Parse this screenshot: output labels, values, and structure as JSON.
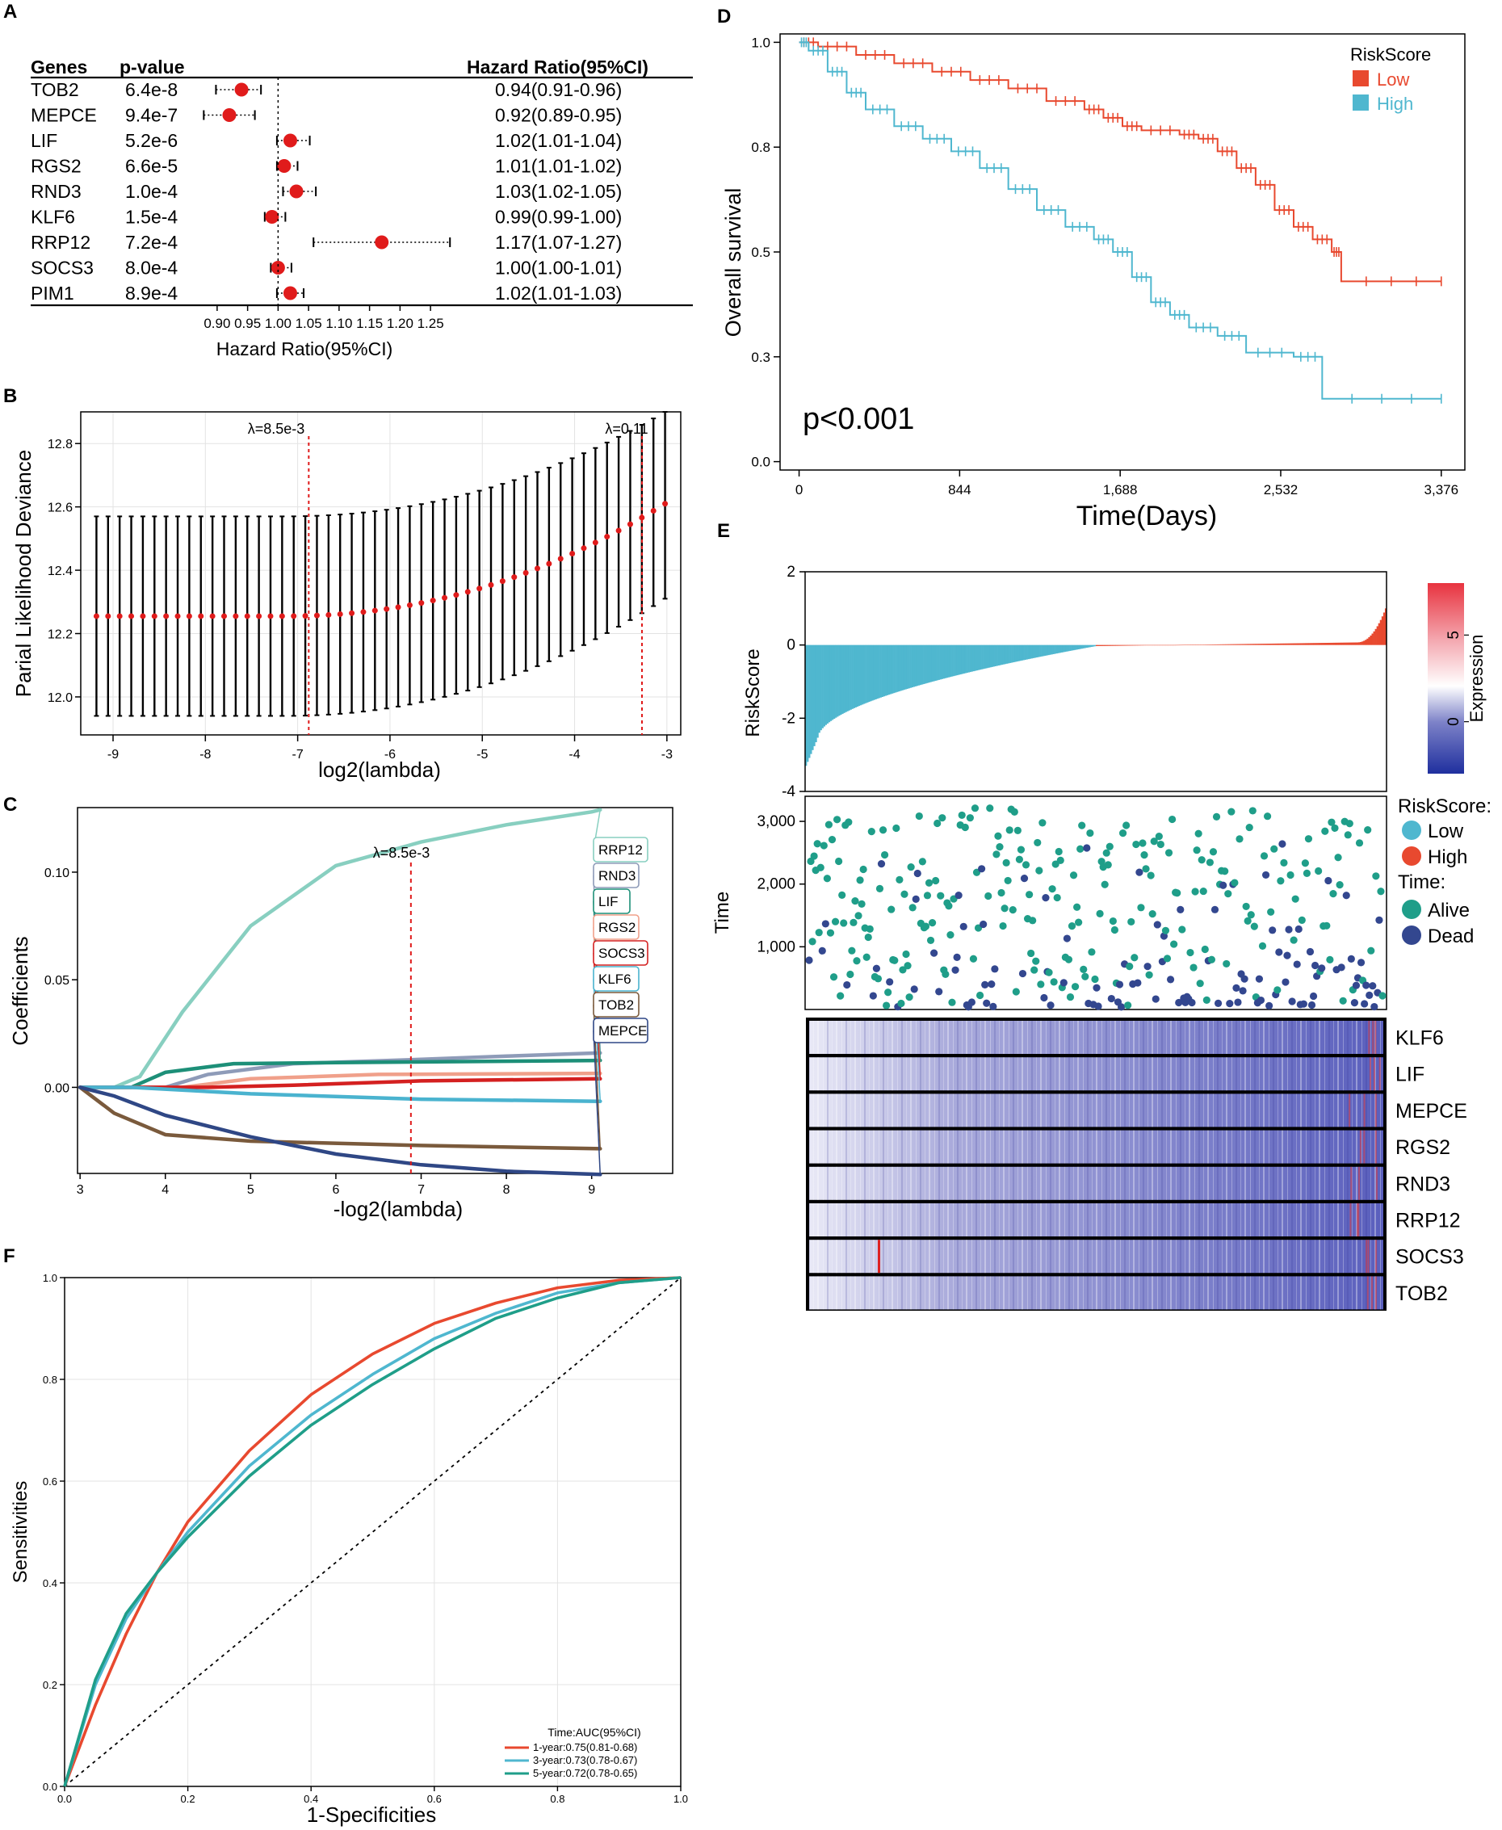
{
  "panels": {
    "A": {
      "letter": "A",
      "hdr_genes": "Genes",
      "hdr_p": "p-value",
      "hdr_hr": "Hazard Ratio(95%CI)",
      "xlabel": "Hazard Ratio(95%CI)",
      "ticks": [
        "0.90",
        "0.95",
        "1.00",
        "1.05",
        "1.10",
        "1.15",
        "1.20",
        "1.25"
      ]
    },
    "B": {
      "letter": "B",
      "ylabel": "Parial Likelihood Deviance",
      "xlabel": "log2(lambda)",
      "lam1": "λ=8.5e-3",
      "lam2": "λ=0.11",
      "xticks": [
        "-9",
        "-8",
        "-7",
        "-6",
        "-5",
        "-4",
        "-3"
      ],
      "yticks": [
        "12.0",
        "12.2",
        "12.4",
        "12.6",
        "12.8"
      ]
    },
    "C": {
      "letter": "C",
      "ylabel": "Coefficients",
      "xlabel": "-log2(lambda)",
      "lam": "λ=8.5e-3",
      "xticks": [
        "3",
        "4",
        "5",
        "6",
        "7",
        "8",
        "9"
      ],
      "yticks": [
        "0.00",
        "0.05",
        "0.10"
      ]
    },
    "D": {
      "letter": "D",
      "ylabel": "Overall survival",
      "xlabel": "Time(Days)",
      "pval": "p<0.001",
      "legend_title": "RiskScore",
      "legend_low": "Low",
      "legend_high": "High",
      "xticks": [
        "0",
        "844",
        "1,688",
        "2,532",
        "3,376"
      ],
      "yticks": [
        "0.0",
        "0.3",
        "0.5",
        "0.8",
        "1.0"
      ]
    },
    "E": {
      "letter": "E",
      "ylabel_top": "RiskScore",
      "ylabel_mid": "Time",
      "colorbar_label": "Expression",
      "cb_ticks": [
        "5",
        "0"
      ],
      "top_yticks": [
        "2",
        "0",
        "-2",
        "-4"
      ],
      "mid_yticks": [
        "3,000",
        "2,000",
        "1,000"
      ],
      "legend_rs": "RiskScore:",
      "legend_low": "Low",
      "legend_high": "High",
      "legend_time": "Time:",
      "legend_alive": "Alive",
      "legend_dead": "Dead",
      "genes": [
        "KLF6",
        "LIF",
        "MEPCE",
        "RGS2",
        "RND3",
        "RRP12",
        "SOCS3",
        "TOB2"
      ]
    },
    "F": {
      "letter": "F",
      "ylabel": "Sensitivities",
      "xlabel": "1-Specificities",
      "legend_title": "Time:AUC(95%CI)",
      "xticks": [
        "0.0",
        "0.2",
        "0.4",
        "0.6",
        "0.8",
        "1.0"
      ],
      "yticks": [
        "0.0",
        "0.2",
        "0.4",
        "0.6",
        "0.8",
        "1.0"
      ]
    }
  },
  "colors": {
    "red": "#e8492f",
    "blue": "#4fb7cf",
    "forest_dot": "#e01b1b",
    "lambda_line": "#e01b1b",
    "alive": "#1f9e89",
    "dead": "#33478f",
    "heat_low": "#3b3fa8",
    "heat_high": "#e03a3a"
  },
  "chart_data": [
    {
      "panel": "A",
      "type": "forest",
      "title": "",
      "xlabel": "Hazard Ratio(95%CI)",
      "xlim": [
        0.875,
        1.275
      ],
      "reference": 1.0,
      "rows": [
        {
          "gene": "TOB2",
          "p": "6.4e-8",
          "hr": 0.94,
          "lo": 0.91,
          "hi": 0.96,
          "label": "0.94(0.91-0.96)"
        },
        {
          "gene": "MEPCE",
          "p": "9.4e-7",
          "hr": 0.92,
          "lo": 0.89,
          "hi": 0.95,
          "label": "0.92(0.89-0.95)"
        },
        {
          "gene": "LIF",
          "p": "5.2e-6",
          "hr": 1.02,
          "lo": 1.01,
          "hi": 1.04,
          "label": "1.02(1.01-1.04)"
        },
        {
          "gene": "RGS2",
          "p": "6.6e-5",
          "hr": 1.01,
          "lo": 1.01,
          "hi": 1.02,
          "label": "1.01(1.01-1.02)"
        },
        {
          "gene": "RND3",
          "p": "1.0e-4",
          "hr": 1.03,
          "lo": 1.02,
          "hi": 1.05,
          "label": "1.03(1.02-1.05)"
        },
        {
          "gene": "KLF6",
          "p": "1.5e-4",
          "hr": 0.99,
          "lo": 0.99,
          "hi": 1.0,
          "label": "0.99(0.99-1.00)"
        },
        {
          "gene": "RRP12",
          "p": "7.2e-4",
          "hr": 1.17,
          "lo": 1.07,
          "hi": 1.27,
          "label": "1.17(1.07-1.27)"
        },
        {
          "gene": "SOCS3",
          "p": "8.0e-4",
          "hr": 1.0,
          "lo": 1.0,
          "hi": 1.01,
          "label": "1.00(1.00-1.01)"
        },
        {
          "gene": "PIM1",
          "p": "8.9e-4",
          "hr": 1.02,
          "lo": 1.01,
          "hi": 1.03,
          "label": "1.02(1.01-1.03)"
        }
      ]
    },
    {
      "panel": "B",
      "type": "errorbar",
      "xlabel": "log2(lambda)",
      "ylabel": "Parial Likelihood Deviance",
      "xlim": [
        -9.35,
        -2.85
      ],
      "ylim": [
        11.88,
        12.9
      ],
      "x_start": -9.18,
      "x_end": -3.02,
      "n_points": 50,
      "mean_start": 12.255,
      "mean_end": 12.61,
      "lower_start": 11.94,
      "upper_start": 12.57,
      "upper_end": 12.9,
      "lower_end": 12.31,
      "lambda_min_log2": -6.88,
      "lambda_1se_log2": -3.27
    },
    {
      "panel": "C",
      "type": "line",
      "xlabel": "-log2(lambda)",
      "ylabel": "Coefficients",
      "xlim": [
        2.97,
        9.95
      ],
      "ylim": [
        -0.04,
        0.13
      ],
      "lambda_line_x": 6.88,
      "series": [
        {
          "name": "RRP12",
          "color": "#88cfc0",
          "points": [
            [
              3.0,
              0.0
            ],
            [
              3.4,
              0.0
            ],
            [
              3.7,
              0.005
            ],
            [
              4.2,
              0.035
            ],
            [
              5.0,
              0.075
            ],
            [
              6.0,
              0.103
            ],
            [
              7.0,
              0.114
            ],
            [
              8.0,
              0.122
            ],
            [
              9.0,
              0.128
            ],
            [
              9.1,
              0.129
            ]
          ]
        },
        {
          "name": "RND3",
          "color": "#8e9bb8",
          "points": [
            [
              3.0,
              0.0
            ],
            [
              4.0,
              0.0
            ],
            [
              4.5,
              0.006
            ],
            [
              5.5,
              0.011
            ],
            [
              7.0,
              0.013
            ],
            [
              8.0,
              0.0145
            ],
            [
              9.1,
              0.016
            ]
          ]
        },
        {
          "name": "LIF",
          "color": "#1d8f78",
          "points": [
            [
              3.0,
              0.0
            ],
            [
              3.6,
              0.0
            ],
            [
              4.0,
              0.007
            ],
            [
              4.8,
              0.011
            ],
            [
              6.0,
              0.0115
            ],
            [
              9.1,
              0.0125
            ]
          ]
        },
        {
          "name": "RGS2",
          "color": "#f0a08a",
          "points": [
            [
              3.0,
              0.0
            ],
            [
              4.2,
              0.0
            ],
            [
              5.0,
              0.004
            ],
            [
              6.5,
              0.006
            ],
            [
              9.1,
              0.0065
            ]
          ]
        },
        {
          "name": "SOCS3",
          "color": "#d42020",
          "points": [
            [
              3.0,
              0.0
            ],
            [
              4.5,
              0.0
            ],
            [
              5.5,
              0.001
            ],
            [
              7.0,
              0.003
            ],
            [
              9.1,
              0.004
            ]
          ]
        },
        {
          "name": "KLF6",
          "color": "#4ab3cf",
          "points": [
            [
              3.0,
              0.0
            ],
            [
              3.6,
              0.0
            ],
            [
              5.0,
              -0.003
            ],
            [
              7.0,
              -0.0055
            ],
            [
              9.1,
              -0.0065
            ]
          ]
        },
        {
          "name": "TOB2",
          "color": "#7a5a3c",
          "points": [
            [
              3.0,
              0.0
            ],
            [
              3.4,
              -0.012
            ],
            [
              4.0,
              -0.022
            ],
            [
              5.0,
              -0.025
            ],
            [
              7.0,
              -0.027
            ],
            [
              9.1,
              -0.0285
            ]
          ]
        },
        {
          "name": "MEPCE",
          "color": "#2f4785",
          "points": [
            [
              3.0,
              0.0
            ],
            [
              3.4,
              -0.004
            ],
            [
              4.0,
              -0.013
            ],
            [
              5.0,
              -0.023
            ],
            [
              6.0,
              -0.031
            ],
            [
              7.0,
              -0.036
            ],
            [
              8.0,
              -0.039
            ],
            [
              9.1,
              -0.0405
            ]
          ]
        }
      ]
    },
    {
      "panel": "D",
      "type": "line",
      "subtype": "kaplan-meier",
      "xlabel": "Time(Days)",
      "ylabel": "Overall survival",
      "xlim": [
        -100,
        3500
      ],
      "ylim": [
        -0.02,
        1.02
      ],
      "series": [
        {
          "name": "Low",
          "color": "#e8492f",
          "points": [
            [
              0,
              1.0
            ],
            [
              100,
              0.99
            ],
            [
              300,
              0.97
            ],
            [
              500,
              0.95
            ],
            [
              700,
              0.93
            ],
            [
              900,
              0.91
            ],
            [
              1100,
              0.89
            ],
            [
              1300,
              0.86
            ],
            [
              1500,
              0.84
            ],
            [
              1600,
              0.82
            ],
            [
              1700,
              0.8
            ],
            [
              1800,
              0.79
            ],
            [
              2000,
              0.78
            ],
            [
              2100,
              0.77
            ],
            [
              2200,
              0.74
            ],
            [
              2300,
              0.7
            ],
            [
              2400,
              0.66
            ],
            [
              2500,
              0.6
            ],
            [
              2600,
              0.56
            ],
            [
              2700,
              0.53
            ],
            [
              2800,
              0.5
            ],
            [
              2850,
              0.43
            ],
            [
              3376,
              0.43
            ]
          ]
        },
        {
          "name": "High",
          "color": "#4fb7cf",
          "points": [
            [
              0,
              1.0
            ],
            [
              50,
              0.98
            ],
            [
              150,
              0.93
            ],
            [
              250,
              0.88
            ],
            [
              350,
              0.84
            ],
            [
              500,
              0.8
            ],
            [
              650,
              0.77
            ],
            [
              800,
              0.74
            ],
            [
              950,
              0.7
            ],
            [
              1100,
              0.65
            ],
            [
              1250,
              0.6
            ],
            [
              1400,
              0.56
            ],
            [
              1550,
              0.53
            ],
            [
              1650,
              0.5
            ],
            [
              1750,
              0.44
            ],
            [
              1850,
              0.38
            ],
            [
              1950,
              0.35
            ],
            [
              2050,
              0.32
            ],
            [
              2200,
              0.3
            ],
            [
              2350,
              0.26
            ],
            [
              2600,
              0.25
            ],
            [
              2750,
              0.15
            ],
            [
              3376,
              0.15
            ]
          ]
        }
      ]
    },
    {
      "panel": "E-top",
      "type": "bar",
      "ylabel": "RiskScore",
      "ylim": [
        -4,
        2
      ],
      "n_samples": 350,
      "n_low": 175,
      "min": -3.3,
      "max": 1.0
    },
    {
      "panel": "E-mid",
      "type": "scatter",
      "ylabel": "Time",
      "ylim": [
        0,
        3400
      ],
      "n_points": 350,
      "groups": [
        "Alive",
        "Dead"
      ]
    },
    {
      "panel": "E-bottom",
      "type": "heatmap",
      "rows": [
        "KLF6",
        "LIF",
        "MEPCE",
        "RGS2",
        "RND3",
        "RRP12",
        "SOCS3",
        "TOB2"
      ],
      "colorbar_range": [
        -3,
        8
      ],
      "colorbar_ticks": [
        5,
        0
      ]
    },
    {
      "panel": "F",
      "type": "line",
      "subtype": "roc",
      "xlabel": "1-Specificities",
      "ylabel": "Sensitivities",
      "xlim": [
        0,
        1
      ],
      "ylim": [
        0,
        1
      ],
      "diagonal": true,
      "series": [
        {
          "name": "1-year:0.75(0.81-0.68)",
          "color": "#e8492f",
          "auc": 0.75,
          "points": [
            [
              0,
              0
            ],
            [
              0.05,
              0.16
            ],
            [
              0.1,
              0.3
            ],
            [
              0.15,
              0.42
            ],
            [
              0.2,
              0.52
            ],
            [
              0.3,
              0.66
            ],
            [
              0.4,
              0.77
            ],
            [
              0.5,
              0.85
            ],
            [
              0.6,
              0.91
            ],
            [
              0.7,
              0.95
            ],
            [
              0.8,
              0.98
            ],
            [
              0.9,
              0.995
            ],
            [
              1.0,
              1.0
            ]
          ]
        },
        {
          "name": "3-year:0.73(0.78-0.67)",
          "color": "#4fb7cf",
          "auc": 0.73,
          "points": [
            [
              0,
              0
            ],
            [
              0.05,
              0.2
            ],
            [
              0.1,
              0.33
            ],
            [
              0.15,
              0.42
            ],
            [
              0.2,
              0.5
            ],
            [
              0.3,
              0.63
            ],
            [
              0.4,
              0.73
            ],
            [
              0.5,
              0.81
            ],
            [
              0.6,
              0.88
            ],
            [
              0.7,
              0.93
            ],
            [
              0.8,
              0.97
            ],
            [
              0.9,
              0.99
            ],
            [
              1.0,
              1.0
            ]
          ]
        },
        {
          "name": "5-year:0.72(0.78-0.65)",
          "color": "#1f9e89",
          "auc": 0.72,
          "points": [
            [
              0,
              0
            ],
            [
              0.05,
              0.21
            ],
            [
              0.1,
              0.34
            ],
            [
              0.15,
              0.42
            ],
            [
              0.2,
              0.49
            ],
            [
              0.3,
              0.61
            ],
            [
              0.4,
              0.71
            ],
            [
              0.5,
              0.79
            ],
            [
              0.6,
              0.86
            ],
            [
              0.7,
              0.92
            ],
            [
              0.8,
              0.96
            ],
            [
              0.9,
              0.99
            ],
            [
              1.0,
              1.0
            ]
          ]
        }
      ]
    }
  ]
}
